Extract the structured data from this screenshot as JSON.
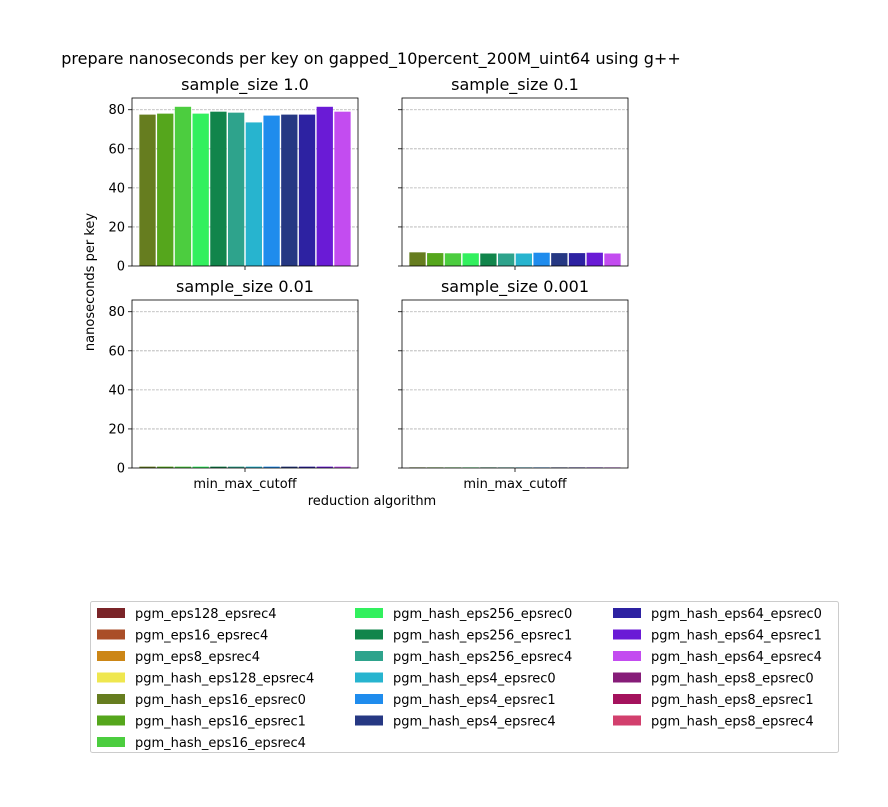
{
  "chart_data": {
    "type": "bar",
    "title": "prepare nanoseconds per key on gapped_10percent_200M_uint64 using g++",
    "ylabel": "nanoseconds per key",
    "xlabel": "reduction algorithm",
    "ylim": [
      0,
      86
    ],
    "yticks": [
      0,
      20,
      40,
      60,
      80
    ],
    "grid": "y-dashed",
    "legend_position": "bottom",
    "series_names": [
      "pgm_hash_eps16_epsrec0",
      "pgm_hash_eps16_epsrec1",
      "pgm_hash_eps16_epsrec4",
      "pgm_hash_eps256_epsrec0",
      "pgm_hash_eps256_epsrec1",
      "pgm_hash_eps256_epsrec4",
      "pgm_hash_eps4_epsrec0",
      "pgm_hash_eps4_epsrec1",
      "pgm_hash_eps4_epsrec4",
      "pgm_hash_eps64_epsrec0",
      "pgm_hash_eps64_epsrec1",
      "pgm_hash_eps64_epsrec4"
    ],
    "series_colors": [
      "#667d1f",
      "#55a61c",
      "#4ccd3f",
      "#32f05e",
      "#11854b",
      "#2ea38c",
      "#27b4cf",
      "#1f8ced",
      "#263883",
      "#2d22a2",
      "#6a1bd6",
      "#c34cf0"
    ],
    "panels": [
      {
        "title": "sample_size 1.0",
        "category": "min_max_cutoff",
        "values": [
          77.5,
          78,
          81.5,
          78,
          79,
          78.5,
          73.5,
          77,
          77.5,
          77.5,
          81.5,
          79
        ]
      },
      {
        "title": "sample_size 0.1",
        "category": "min_max_cutoff",
        "values": [
          7,
          6.6,
          6.5,
          6.5,
          6.4,
          6.4,
          6.4,
          6.8,
          6.6,
          6.6,
          6.8,
          6.4
        ]
      },
      {
        "title": "sample_size 0.01",
        "category": "min_max_cutoff",
        "values": [
          0.7,
          0.7,
          0.7,
          0.7,
          0.7,
          0.7,
          0.7,
          0.7,
          0.7,
          0.7,
          0.7,
          0.7
        ]
      },
      {
        "title": "sample_size 0.001",
        "category": "min_max_cutoff",
        "values": [
          0.07,
          0.07,
          0.07,
          0.07,
          0.07,
          0.07,
          0.07,
          0.07,
          0.07,
          0.07,
          0.07,
          0.07
        ]
      }
    ]
  },
  "legend": [
    {
      "label": "pgm_eps128_epsrec4",
      "color": "#7a2428"
    },
    {
      "label": "pgm_eps16_epsrec4",
      "color": "#aa4e28"
    },
    {
      "label": "pgm_eps8_epsrec4",
      "color": "#cc8616"
    },
    {
      "label": "pgm_hash_eps128_epsrec4",
      "color": "#efe74f"
    },
    {
      "label": "pgm_hash_eps16_epsrec0",
      "color": "#667d1f"
    },
    {
      "label": "pgm_hash_eps16_epsrec1",
      "color": "#55a61c"
    },
    {
      "label": "pgm_hash_eps16_epsrec4",
      "color": "#4ccd3f"
    },
    {
      "label": "pgm_hash_eps256_epsrec0",
      "color": "#32f05e"
    },
    {
      "label": "pgm_hash_eps256_epsrec1",
      "color": "#11854b"
    },
    {
      "label": "pgm_hash_eps256_epsrec4",
      "color": "#2ea38c"
    },
    {
      "label": "pgm_hash_eps4_epsrec0",
      "color": "#27b4cf"
    },
    {
      "label": "pgm_hash_eps4_epsrec1",
      "color": "#1f8ced"
    },
    {
      "label": "pgm_hash_eps4_epsrec4",
      "color": "#263883"
    },
    {
      "label": "pgm_hash_eps64_epsrec0",
      "color": "#2d22a2"
    },
    {
      "label": "pgm_hash_eps64_epsrec1",
      "color": "#6a1bd6"
    },
    {
      "label": "pgm_hash_eps64_epsrec4",
      "color": "#c34cf0"
    },
    {
      "label": "pgm_hash_eps8_epsrec0",
      "color": "#861c78"
    },
    {
      "label": "pgm_hash_eps8_epsrec1",
      "color": "#a4125d"
    },
    {
      "label": "pgm_hash_eps8_epsrec4",
      "color": "#d23f6d"
    }
  ]
}
